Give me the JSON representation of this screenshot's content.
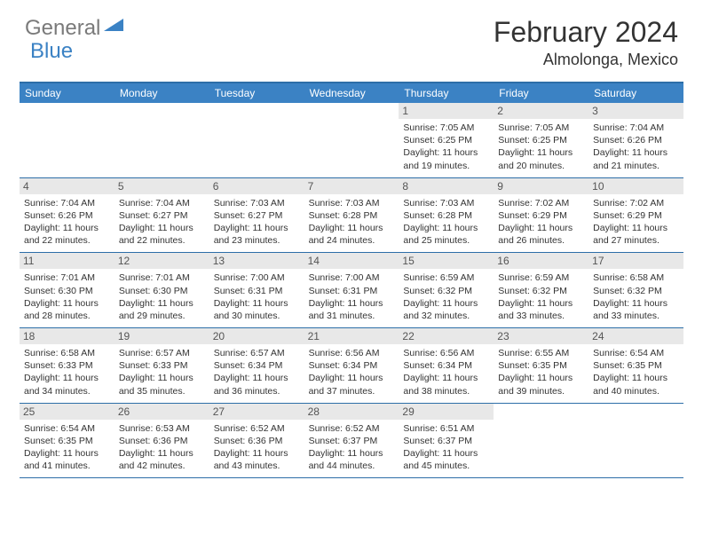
{
  "logo": {
    "text1": "General",
    "text2": "Blue"
  },
  "title": "February 2024",
  "location": "Almolonga, Mexico",
  "colors": {
    "header_bg": "#3b82c4",
    "border": "#2d6ea8",
    "daynum_bg": "#e8e8e8",
    "text": "#333333",
    "logo_gray": "#7a7a7a",
    "logo_blue": "#3b82c4"
  },
  "day_names": [
    "Sunday",
    "Monday",
    "Tuesday",
    "Wednesday",
    "Thursday",
    "Friday",
    "Saturday"
  ],
  "weeks": [
    [
      null,
      null,
      null,
      null,
      {
        "n": "1",
        "sr": "7:05 AM",
        "ss": "6:25 PM",
        "dl": "11 hours and 19 minutes."
      },
      {
        "n": "2",
        "sr": "7:05 AM",
        "ss": "6:25 PM",
        "dl": "11 hours and 20 minutes."
      },
      {
        "n": "3",
        "sr": "7:04 AM",
        "ss": "6:26 PM",
        "dl": "11 hours and 21 minutes."
      }
    ],
    [
      {
        "n": "4",
        "sr": "7:04 AM",
        "ss": "6:26 PM",
        "dl": "11 hours and 22 minutes."
      },
      {
        "n": "5",
        "sr": "7:04 AM",
        "ss": "6:27 PM",
        "dl": "11 hours and 22 minutes."
      },
      {
        "n": "6",
        "sr": "7:03 AM",
        "ss": "6:27 PM",
        "dl": "11 hours and 23 minutes."
      },
      {
        "n": "7",
        "sr": "7:03 AM",
        "ss": "6:28 PM",
        "dl": "11 hours and 24 minutes."
      },
      {
        "n": "8",
        "sr": "7:03 AM",
        "ss": "6:28 PM",
        "dl": "11 hours and 25 minutes."
      },
      {
        "n": "9",
        "sr": "7:02 AM",
        "ss": "6:29 PM",
        "dl": "11 hours and 26 minutes."
      },
      {
        "n": "10",
        "sr": "7:02 AM",
        "ss": "6:29 PM",
        "dl": "11 hours and 27 minutes."
      }
    ],
    [
      {
        "n": "11",
        "sr": "7:01 AM",
        "ss": "6:30 PM",
        "dl": "11 hours and 28 minutes."
      },
      {
        "n": "12",
        "sr": "7:01 AM",
        "ss": "6:30 PM",
        "dl": "11 hours and 29 minutes."
      },
      {
        "n": "13",
        "sr": "7:00 AM",
        "ss": "6:31 PM",
        "dl": "11 hours and 30 minutes."
      },
      {
        "n": "14",
        "sr": "7:00 AM",
        "ss": "6:31 PM",
        "dl": "11 hours and 31 minutes."
      },
      {
        "n": "15",
        "sr": "6:59 AM",
        "ss": "6:32 PM",
        "dl": "11 hours and 32 minutes."
      },
      {
        "n": "16",
        "sr": "6:59 AM",
        "ss": "6:32 PM",
        "dl": "11 hours and 33 minutes."
      },
      {
        "n": "17",
        "sr": "6:58 AM",
        "ss": "6:32 PM",
        "dl": "11 hours and 33 minutes."
      }
    ],
    [
      {
        "n": "18",
        "sr": "6:58 AM",
        "ss": "6:33 PM",
        "dl": "11 hours and 34 minutes."
      },
      {
        "n": "19",
        "sr": "6:57 AM",
        "ss": "6:33 PM",
        "dl": "11 hours and 35 minutes."
      },
      {
        "n": "20",
        "sr": "6:57 AM",
        "ss": "6:34 PM",
        "dl": "11 hours and 36 minutes."
      },
      {
        "n": "21",
        "sr": "6:56 AM",
        "ss": "6:34 PM",
        "dl": "11 hours and 37 minutes."
      },
      {
        "n": "22",
        "sr": "6:56 AM",
        "ss": "6:34 PM",
        "dl": "11 hours and 38 minutes."
      },
      {
        "n": "23",
        "sr": "6:55 AM",
        "ss": "6:35 PM",
        "dl": "11 hours and 39 minutes."
      },
      {
        "n": "24",
        "sr": "6:54 AM",
        "ss": "6:35 PM",
        "dl": "11 hours and 40 minutes."
      }
    ],
    [
      {
        "n": "25",
        "sr": "6:54 AM",
        "ss": "6:35 PM",
        "dl": "11 hours and 41 minutes."
      },
      {
        "n": "26",
        "sr": "6:53 AM",
        "ss": "6:36 PM",
        "dl": "11 hours and 42 minutes."
      },
      {
        "n": "27",
        "sr": "6:52 AM",
        "ss": "6:36 PM",
        "dl": "11 hours and 43 minutes."
      },
      {
        "n": "28",
        "sr": "6:52 AM",
        "ss": "6:37 PM",
        "dl": "11 hours and 44 minutes."
      },
      {
        "n": "29",
        "sr": "6:51 AM",
        "ss": "6:37 PM",
        "dl": "11 hours and 45 minutes."
      },
      null,
      null
    ]
  ],
  "labels": {
    "sunrise": "Sunrise:",
    "sunset": "Sunset:",
    "daylight": "Daylight:"
  }
}
